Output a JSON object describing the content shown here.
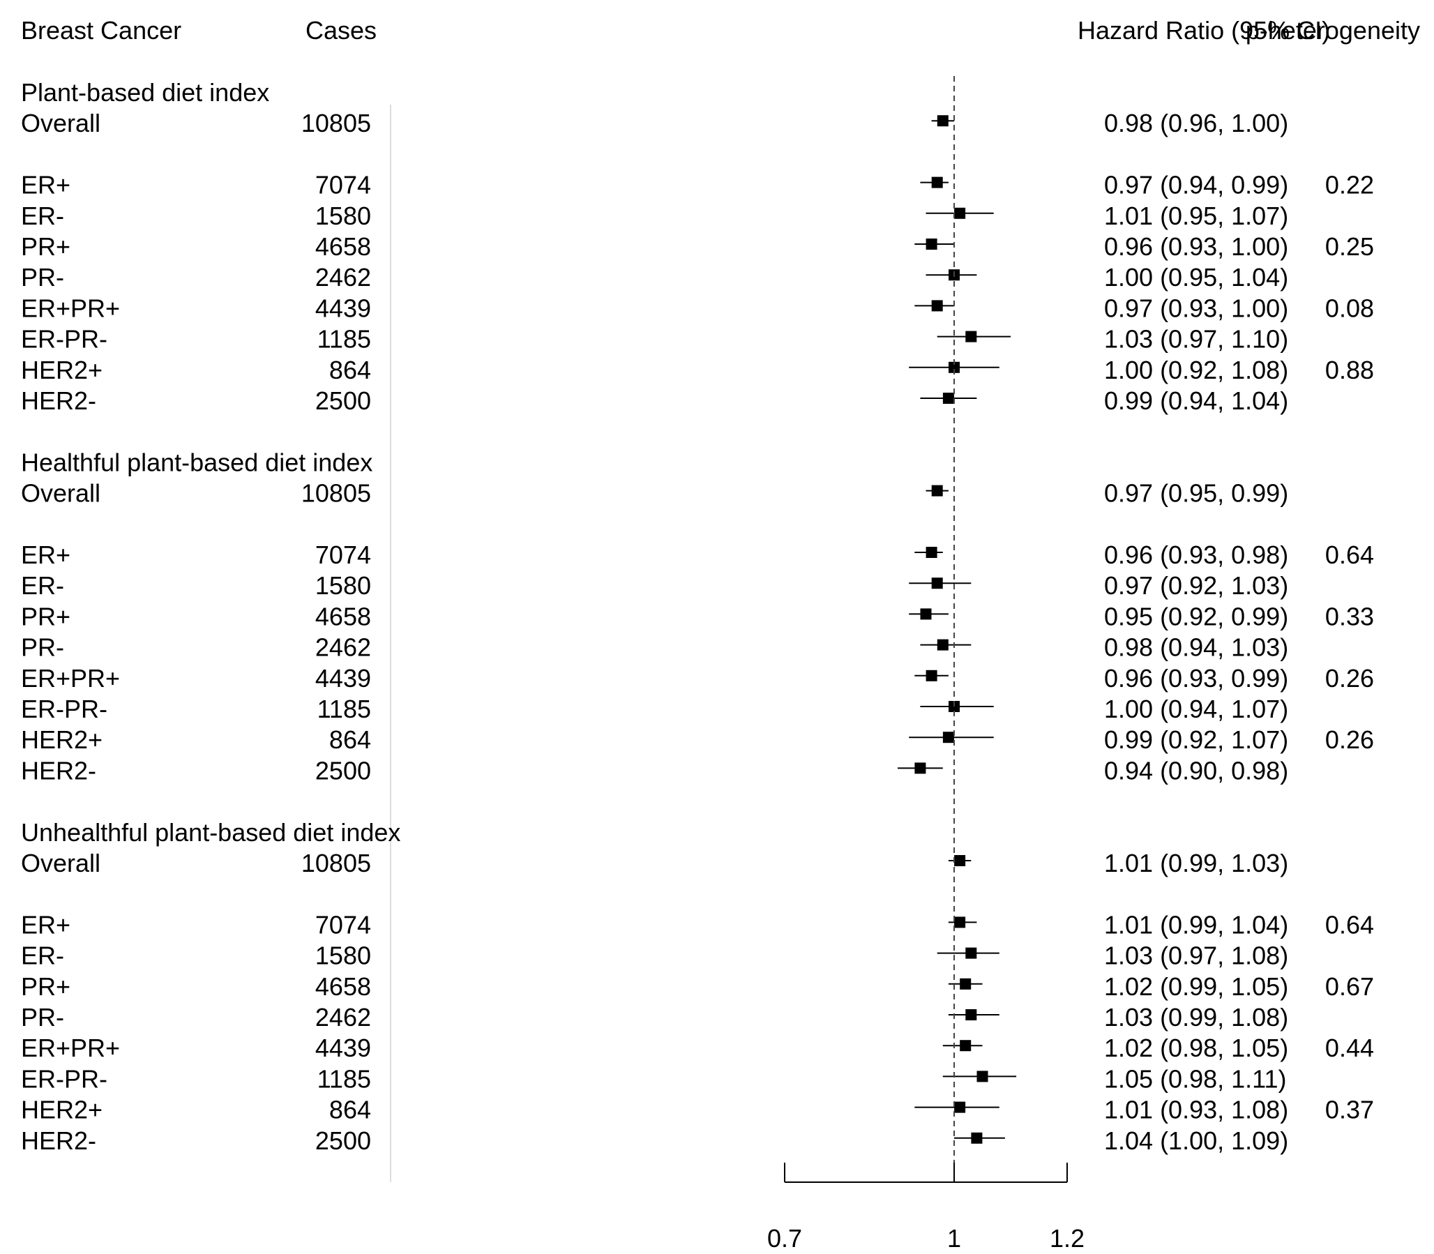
{
  "chart_data": {
    "type": "forest",
    "headers": {
      "label": "Breast Cancer",
      "cases": "Cases",
      "hr": "Hazard Ratio (95% CI)",
      "phet": "p-heterogeneity"
    },
    "xaxis": {
      "min": 0.7,
      "max": 1.2,
      "ref": 1,
      "ticks": [
        {
          "value": 0.7,
          "label": "0.7"
        },
        {
          "value": 1,
          "label": "1"
        },
        {
          "value": 1.2,
          "label": "1.2"
        }
      ]
    },
    "rows": [
      {
        "kind": "group",
        "label": "Plant-based diet index"
      },
      {
        "kind": "row",
        "label": "Overall",
        "cases": "10805",
        "hr": 0.98,
        "lo": 0.96,
        "hi": 1.0,
        "text": "0.98 (0.96, 1.00)",
        "p": ""
      },
      {
        "kind": "gap"
      },
      {
        "kind": "row",
        "label": "ER+",
        "cases": "7074",
        "hr": 0.97,
        "lo": 0.94,
        "hi": 0.99,
        "text": "0.97 (0.94, 0.99)",
        "p": "0.22"
      },
      {
        "kind": "row",
        "label": "ER-",
        "cases": "1580",
        "hr": 1.01,
        "lo": 0.95,
        "hi": 1.07,
        "text": "1.01 (0.95, 1.07)",
        "p": ""
      },
      {
        "kind": "row",
        "label": "PR+",
        "cases": "4658",
        "hr": 0.96,
        "lo": 0.93,
        "hi": 1.0,
        "text": "0.96 (0.93, 1.00)",
        "p": "0.25"
      },
      {
        "kind": "row",
        "label": "PR-",
        "cases": "2462",
        "hr": 1.0,
        "lo": 0.95,
        "hi": 1.04,
        "text": "1.00 (0.95, 1.04)",
        "p": ""
      },
      {
        "kind": "row",
        "label": "ER+PR+",
        "cases": "4439",
        "hr": 0.97,
        "lo": 0.93,
        "hi": 1.0,
        "text": "0.97 (0.93, 1.00)",
        "p": "0.08"
      },
      {
        "kind": "row",
        "label": "ER-PR-",
        "cases": "1185",
        "hr": 1.03,
        "lo": 0.97,
        "hi": 1.1,
        "text": "1.03 (0.97, 1.10)",
        "p": ""
      },
      {
        "kind": "row",
        "label": "HER2+",
        "cases": "864",
        "hr": 1.0,
        "lo": 0.92,
        "hi": 1.08,
        "text": "1.00 (0.92, 1.08)",
        "p": "0.88"
      },
      {
        "kind": "row",
        "label": "HER2-",
        "cases": "2500",
        "hr": 0.99,
        "lo": 0.94,
        "hi": 1.04,
        "text": "0.99 (0.94, 1.04)",
        "p": ""
      },
      {
        "kind": "gap"
      },
      {
        "kind": "group",
        "label": "Healthful plant-based diet index"
      },
      {
        "kind": "row",
        "label": "Overall",
        "cases": "10805",
        "hr": 0.97,
        "lo": 0.95,
        "hi": 0.99,
        "text": "0.97 (0.95, 0.99)",
        "p": ""
      },
      {
        "kind": "gap"
      },
      {
        "kind": "row",
        "label": "ER+",
        "cases": "7074",
        "hr": 0.96,
        "lo": 0.93,
        "hi": 0.98,
        "text": "0.96 (0.93, 0.98)",
        "p": "0.64"
      },
      {
        "kind": "row",
        "label": "ER-",
        "cases": "1580",
        "hr": 0.97,
        "lo": 0.92,
        "hi": 1.03,
        "text": "0.97 (0.92, 1.03)",
        "p": ""
      },
      {
        "kind": "row",
        "label": "PR+",
        "cases": "4658",
        "hr": 0.95,
        "lo": 0.92,
        "hi": 0.99,
        "text": "0.95 (0.92, 0.99)",
        "p": "0.33"
      },
      {
        "kind": "row",
        "label": "PR-",
        "cases": "2462",
        "hr": 0.98,
        "lo": 0.94,
        "hi": 1.03,
        "text": "0.98 (0.94, 1.03)",
        "p": ""
      },
      {
        "kind": "row",
        "label": "ER+PR+",
        "cases": "4439",
        "hr": 0.96,
        "lo": 0.93,
        "hi": 0.99,
        "text": "0.96 (0.93, 0.99)",
        "p": "0.26"
      },
      {
        "kind": "row",
        "label": "ER-PR-",
        "cases": "1185",
        "hr": 1.0,
        "lo": 0.94,
        "hi": 1.07,
        "text": "1.00 (0.94, 1.07)",
        "p": ""
      },
      {
        "kind": "row",
        "label": "HER2+",
        "cases": "864",
        "hr": 0.99,
        "lo": 0.92,
        "hi": 1.07,
        "text": "0.99 (0.92, 1.07)",
        "p": "0.26"
      },
      {
        "kind": "row",
        "label": "HER2-",
        "cases": "2500",
        "hr": 0.94,
        "lo": 0.9,
        "hi": 0.98,
        "text": "0.94 (0.90, 0.98)",
        "p": ""
      },
      {
        "kind": "gap"
      },
      {
        "kind": "group",
        "label": "Unhealthful plant-based diet index"
      },
      {
        "kind": "row",
        "label": "Overall",
        "cases": "10805",
        "hr": 1.01,
        "lo": 0.99,
        "hi": 1.03,
        "text": "1.01 (0.99, 1.03)",
        "p": ""
      },
      {
        "kind": "gap"
      },
      {
        "kind": "row",
        "label": "ER+",
        "cases": "7074",
        "hr": 1.01,
        "lo": 0.99,
        "hi": 1.04,
        "text": "1.01 (0.99, 1.04)",
        "p": "0.64"
      },
      {
        "kind": "row",
        "label": "ER-",
        "cases": "1580",
        "hr": 1.03,
        "lo": 0.97,
        "hi": 1.08,
        "text": "1.03 (0.97, 1.08)",
        "p": ""
      },
      {
        "kind": "row",
        "label": "PR+",
        "cases": "4658",
        "hr": 1.02,
        "lo": 0.99,
        "hi": 1.05,
        "text": "1.02 (0.99, 1.05)",
        "p": "0.67"
      },
      {
        "kind": "row",
        "label": "PR-",
        "cases": "2462",
        "hr": 1.03,
        "lo": 0.99,
        "hi": 1.08,
        "text": "1.03 (0.99, 1.08)",
        "p": ""
      },
      {
        "kind": "row",
        "label": "ER+PR+",
        "cases": "4439",
        "hr": 1.02,
        "lo": 0.98,
        "hi": 1.05,
        "text": "1.02 (0.98, 1.05)",
        "p": "0.44"
      },
      {
        "kind": "row",
        "label": "ER-PR-",
        "cases": "1185",
        "hr": 1.05,
        "lo": 0.98,
        "hi": 1.11,
        "text": "1.05 (0.98, 1.11)",
        "p": ""
      },
      {
        "kind": "row",
        "label": "HER2+",
        "cases": "864",
        "hr": 1.01,
        "lo": 0.93,
        "hi": 1.08,
        "text": "1.01 (0.93, 1.08)",
        "p": "0.37"
      },
      {
        "kind": "row",
        "label": "HER2-",
        "cases": "2500",
        "hr": 1.04,
        "lo": 1.0,
        "hi": 1.09,
        "text": "1.04 (1.00, 1.09)",
        "p": ""
      }
    ]
  }
}
